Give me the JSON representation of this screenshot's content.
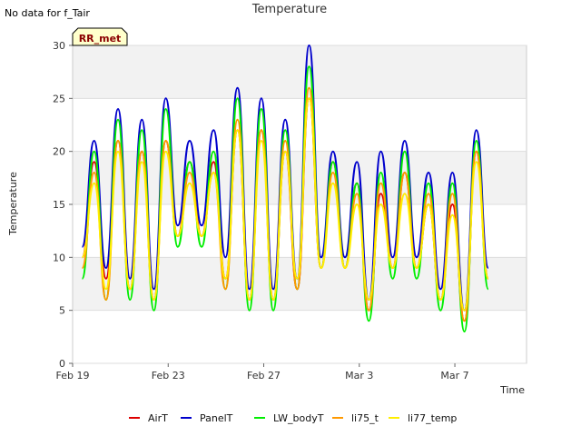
{
  "chart_data": {
    "type": "line",
    "title": "Temperature",
    "note": "No data for f_Tair",
    "site_badge": "RR_met",
    "xlabel": "Time",
    "ylabel": "Temperature",
    "ylim": [
      0,
      30
    ],
    "yticks": [
      0,
      5,
      10,
      15,
      20,
      25,
      30
    ],
    "xlim_days": [
      19,
      38
    ],
    "xticks": [
      {
        "day": 19,
        "label": "Feb 19"
      },
      {
        "day": 23,
        "label": "Feb 23"
      },
      {
        "day": 27,
        "label": "Feb 27"
      },
      {
        "day": 31,
        "label": "Mar 3"
      },
      {
        "day": 35,
        "label": "Mar 7"
      }
    ],
    "grid": true,
    "legend_position": "bottom",
    "x": [
      19.4,
      19.9,
      20.4,
      20.9,
      21.4,
      21.9,
      22.4,
      22.9,
      23.4,
      23.9,
      24.4,
      24.9,
      25.4,
      25.9,
      26.4,
      26.9,
      27.4,
      27.9,
      28.4,
      28.9,
      29.4,
      29.9,
      30.4,
      30.9,
      31.4,
      31.9,
      32.4,
      32.9,
      33.4,
      33.9,
      34.4,
      34.9,
      35.4,
      35.9,
      36.4
    ],
    "series": [
      {
        "name": "AirT",
        "color": "#dd0000",
        "values": [
          10,
          19,
          8,
          21,
          7,
          20,
          6,
          21,
          12,
          19,
          12,
          19,
          8,
          22,
          6,
          22,
          6,
          20,
          7,
          25,
          9,
          19,
          9,
          17,
          5,
          16,
          9,
          18,
          9,
          15,
          6,
          15,
          4,
          20,
          8
        ]
      },
      {
        "name": "PanelT",
        "color": "#0000cc",
        "values": [
          11,
          21,
          9,
          24,
          8,
          23,
          7,
          25,
          13,
          21,
          13,
          22,
          10,
          26,
          7,
          25,
          7,
          23,
          8,
          30,
          10,
          20,
          10,
          19,
          6,
          20,
          10,
          21,
          10,
          18,
          7,
          18,
          5,
          22,
          9
        ]
      },
      {
        "name": "LW_bodyT",
        "color": "#00ee00",
        "values": [
          8,
          20,
          6,
          23,
          6,
          22,
          5,
          24,
          11,
          19,
          11,
          20,
          7,
          25,
          5,
          24,
          5,
          22,
          7,
          28,
          9,
          19,
          9,
          17,
          4,
          18,
          8,
          20,
          8,
          17,
          5,
          17,
          3,
          21,
          7
        ]
      },
      {
        "name": "li75_t",
        "color": "#ff9900",
        "values": [
          9,
          18,
          6,
          21,
          7,
          20,
          6,
          21,
          12,
          18,
          12,
          18,
          7,
          23,
          6,
          22,
          6,
          21,
          7,
          26,
          9,
          18,
          9,
          16,
          5,
          17,
          9,
          18,
          9,
          16,
          6,
          16,
          4,
          20,
          8
        ]
      },
      {
        "name": "li77_temp",
        "color": "#ffee00",
        "values": [
          10,
          17,
          7,
          20,
          7,
          19,
          6,
          20,
          12,
          17,
          12,
          18,
          8,
          22,
          6,
          21,
          6,
          20,
          8,
          25,
          9,
          17,
          9,
          15,
          6,
          15,
          9,
          16,
          9,
          15,
          6,
          14,
          5,
          19,
          8
        ]
      }
    ]
  }
}
